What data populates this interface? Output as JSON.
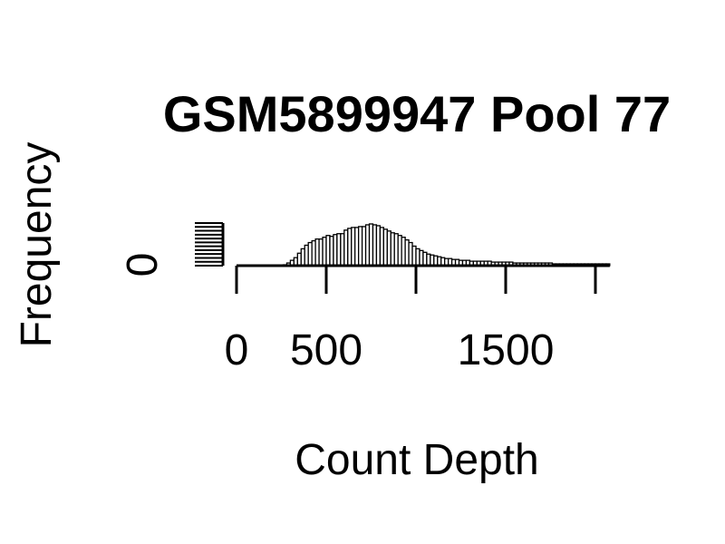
{
  "chart_data": {
    "type": "bar",
    "title": "GSM5899947 Pool 77",
    "xlabel": "Count Depth",
    "ylabel": "Frequency",
    "x_ticks": [
      0,
      500,
      1000,
      1500,
      2000
    ],
    "x_tick_labels": [
      "0",
      "500",
      "",
      "1500",
      ""
    ],
    "y_ticks": [
      0
    ],
    "y_tick_labels": [
      "0"
    ],
    "xlim": [
      0,
      2080
    ],
    "bin_width": 20,
    "y_max": 48,
    "bin_start": 260,
    "values": [
      1,
      3,
      6,
      9,
      14,
      19,
      23,
      26,
      28,
      30,
      30,
      32,
      34,
      33,
      35,
      36,
      36,
      40,
      42,
      43,
      43,
      44,
      44,
      46,
      47,
      46,
      45,
      43,
      41,
      39,
      37,
      36,
      34,
      32,
      29,
      26,
      22,
      19,
      17,
      15,
      13,
      12,
      11,
      10,
      9,
      8,
      8,
      7,
      7,
      6,
      6,
      6,
      5,
      5,
      5,
      5,
      5,
      5,
      4,
      4,
      4,
      4,
      4,
      4,
      3,
      3,
      3,
      3,
      3,
      3,
      3,
      3,
      3,
      3,
      3,
      2,
      2,
      2,
      2,
      2,
      2,
      2,
      2,
      2,
      2,
      2,
      2,
      2,
      2,
      2,
      2
    ]
  }
}
